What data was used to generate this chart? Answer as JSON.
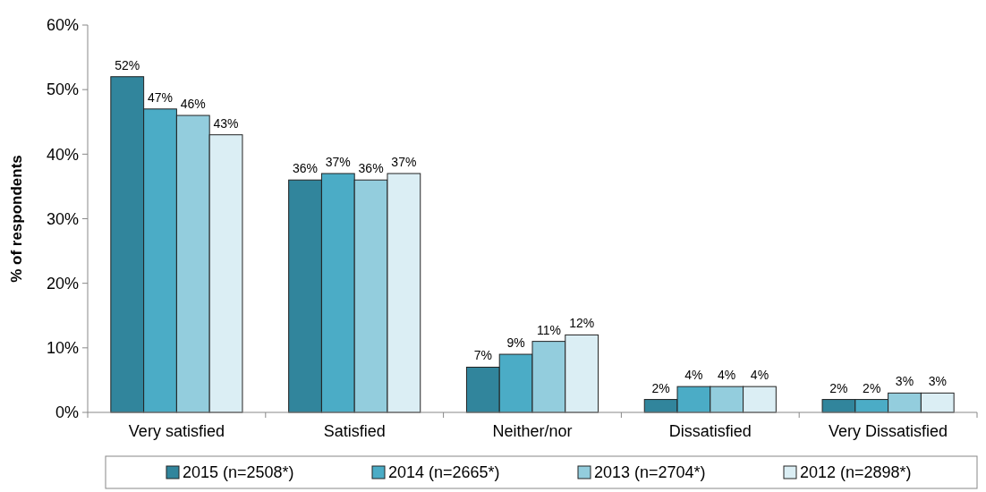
{
  "chart_data": {
    "type": "bar",
    "ylabel": "% of respondents",
    "categories": [
      "Very satisfied",
      "Satisfied",
      "Neither/nor",
      "Dissatisfied",
      "Very Dissatisfied"
    ],
    "series": [
      {
        "name": "2015 (n=2508*)",
        "color": "#31859c",
        "values": [
          52,
          36,
          7,
          2,
          2
        ],
        "value_labels": [
          "52%",
          "36%",
          "7%",
          "2%",
          "2%"
        ]
      },
      {
        "name": "2014 (n=2665*)",
        "color": "#4bacc6",
        "values": [
          47,
          37,
          9,
          4,
          2
        ],
        "value_labels": [
          "47%",
          "37%",
          "9%",
          "4%",
          "2%"
        ]
      },
      {
        "name": "2013 (n=2704*)",
        "color": "#93cddd",
        "values": [
          46,
          36,
          11,
          4,
          3
        ],
        "value_labels": [
          "46%",
          "36%",
          "11%",
          "4%",
          "3%"
        ]
      },
      {
        "name": "2012 (n=2898*)",
        "color": "#dbeef4",
        "values": [
          43,
          37,
          12,
          4,
          3
        ],
        "value_labels": [
          "43%",
          "37%",
          "12%",
          "4%",
          "3%"
        ]
      }
    ],
    "ylim": [
      0,
      60
    ],
    "yticks": [
      {
        "value": 0,
        "label": "0%"
      },
      {
        "value": 10,
        "label": "10%"
      },
      {
        "value": 20,
        "label": "20%"
      },
      {
        "value": 30,
        "label": "30%"
      },
      {
        "value": 40,
        "label": "40%"
      },
      {
        "value": 50,
        "label": "50%"
      },
      {
        "value": 60,
        "label": "60%"
      }
    ],
    "grid": false,
    "legend": "bottom"
  }
}
